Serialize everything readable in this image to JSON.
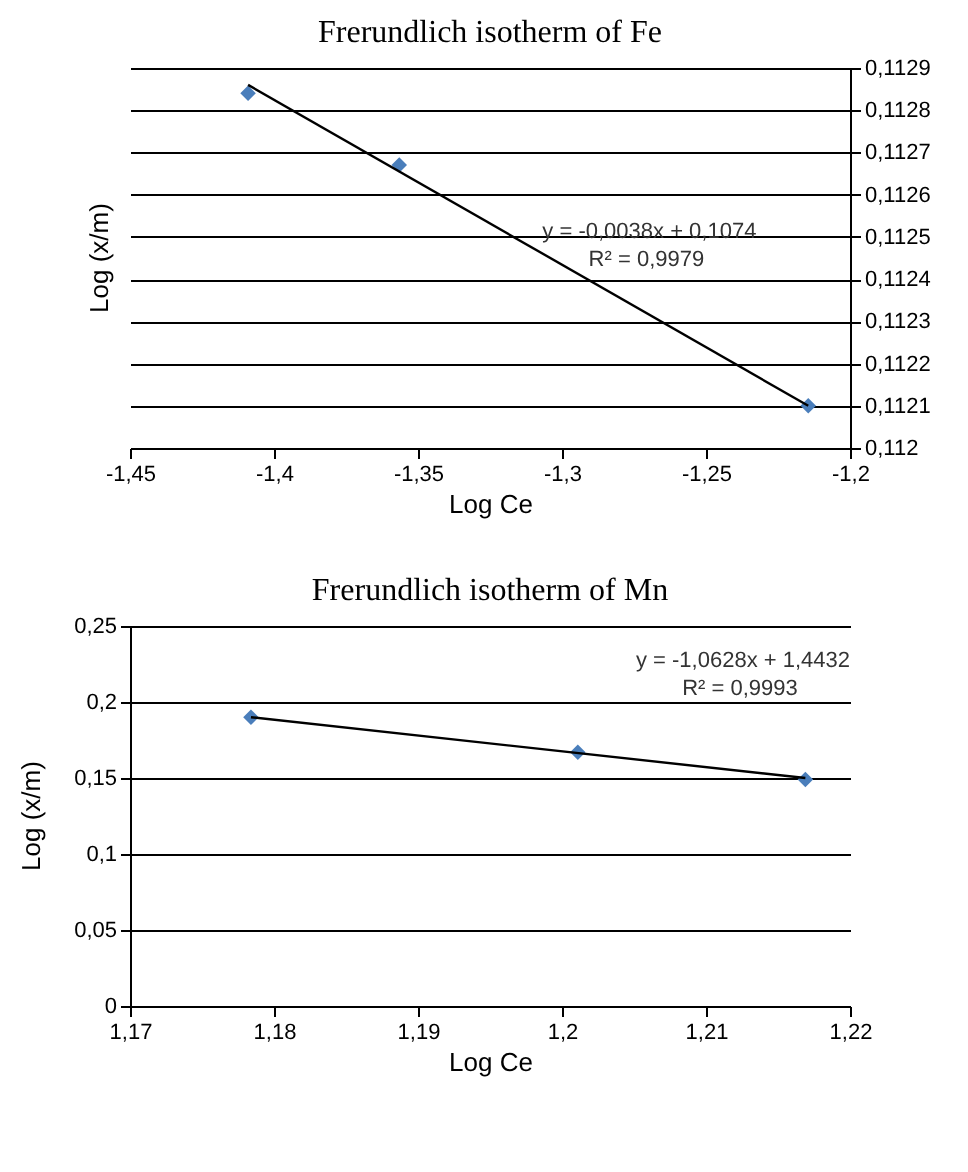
{
  "chart_data": [
    {
      "type": "scatter",
      "title": "Frerundlich  isotherm of Fe",
      "xlabel": "Log Ce",
      "ylabel": "Log (x/m)",
      "series": [
        {
          "color": "#4a7ebb",
          "axis": "y2",
          "marker": "diamond",
          "x": [
            -1.409,
            -1.3565,
            -1.2145
          ],
          "values": [
            0.11284,
            0.11267,
            0.1121
          ]
        },
        {
          "type": "line",
          "color": "#000000",
          "axis": "y2",
          "marker": "none",
          "line_style": "solid",
          "x": [
            -1.409,
            -1.2145
          ],
          "values": [
            0.11286,
            0.1121
          ]
        }
      ],
      "xlim": [
        -1.45,
        -1.2
      ],
      "xticks": [
        {
          "value": -1.45,
          "label": "-1,45"
        },
        {
          "value": -1.4,
          "label": "-1,4"
        },
        {
          "value": -1.35,
          "label": "-1,35"
        },
        {
          "value": -1.3,
          "label": "-1,3"
        },
        {
          "value": -1.25,
          "label": "-1,25"
        },
        {
          "value": -1.2,
          "label": "-1,2"
        }
      ],
      "y2lim": [
        0.112,
        0.1129
      ],
      "y2ticks": [
        {
          "value": 0.112,
          "label": "0,112"
        },
        {
          "value": 0.1121,
          "label": "0,1121"
        },
        {
          "value": 0.1122,
          "label": "0,1122"
        },
        {
          "value": 0.1123,
          "label": "0,1123"
        },
        {
          "value": 0.1124,
          "label": "0,1124"
        },
        {
          "value": 0.1125,
          "label": "0,1125"
        },
        {
          "value": 0.1126,
          "label": "0,1126"
        },
        {
          "value": 0.1127,
          "label": "0,1127"
        },
        {
          "value": 0.1128,
          "label": "0,1128"
        },
        {
          "value": 0.1129,
          "label": "0,1129"
        }
      ],
      "annotations": [
        "y = -0,0038x + 0,1074",
        "R² = 0,9979"
      ],
      "grid": "y"
    },
    {
      "type": "scatter",
      "title": "Frerundlich  isotherm of Mn",
      "xlabel": "Log Ce",
      "ylabel": "Log (x/m)",
      "series": [
        {
          "color": "#4a7ebb",
          "marker": "diamond",
          "x": [
            1.1784,
            1.2011,
            1.2169
          ],
          "values": [
            0.19,
            0.167,
            0.149
          ]
        },
        {
          "type": "line",
          "color": "#000000",
          "marker": "none",
          "line_style": "solid",
          "x": [
            1.1784,
            1.2169
          ],
          "values": [
            0.19,
            0.15
          ]
        }
      ],
      "xlim": [
        1.17,
        1.22
      ],
      "xticks": [
        {
          "value": 1.17,
          "label": "1,17"
        },
        {
          "value": 1.18,
          "label": "1,18"
        },
        {
          "value": 1.19,
          "label": "1,19"
        },
        {
          "value": 1.2,
          "label": "1,2"
        },
        {
          "value": 1.21,
          "label": "1,21"
        },
        {
          "value": 1.22,
          "label": "1,22"
        }
      ],
      "ylim": [
        0,
        0.25
      ],
      "yticks": [
        {
          "value": 0,
          "label": "0"
        },
        {
          "value": 0.05,
          "label": "0,05"
        },
        {
          "value": 0.1,
          "label": "0,1"
        },
        {
          "value": 0.15,
          "label": "0,15"
        },
        {
          "value": 0.2,
          "label": "0,2"
        },
        {
          "value": 0.25,
          "label": "0,25"
        }
      ],
      "annotations": [
        "y = -1,0628x + 1,4432",
        "R² = 0,9993"
      ],
      "grid": "y"
    }
  ]
}
